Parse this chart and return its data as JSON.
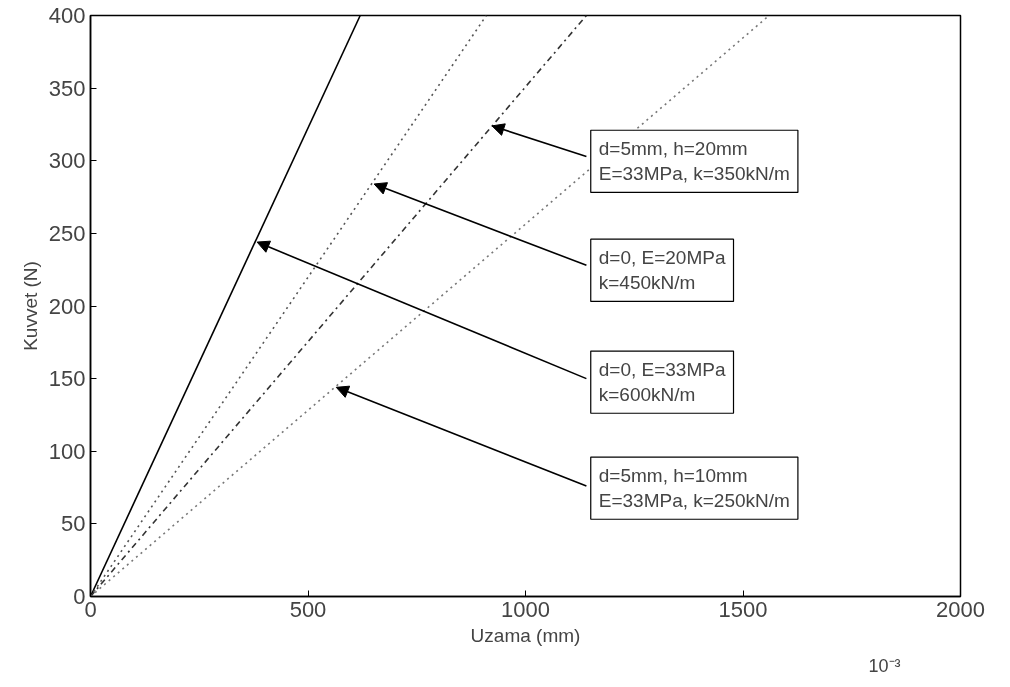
{
  "chart_data": {
    "type": "line",
    "xlabel": "Uzama (mm)",
    "ylabel": "Kuvvet (N)",
    "xlim": [
      0,
      2000
    ],
    "ylim": [
      0,
      400
    ],
    "xticks": [
      0,
      500,
      1000,
      1500,
      2000
    ],
    "yticks": [
      0,
      50,
      100,
      150,
      200,
      250,
      300,
      350,
      400
    ],
    "grid": false,
    "series": [
      {
        "color": "#000000",
        "line_style": "solid",
        "x": [
          0,
          620
        ],
        "values": [
          0,
          400
        ]
      },
      {
        "color": "#555555",
        "line_style": "dotted",
        "x": [
          0,
          910
        ],
        "values": [
          0,
          400
        ]
      },
      {
        "color": "#333333",
        "line_style": "dashdot",
        "x": [
          0,
          1140
        ],
        "values": [
          0,
          400
        ]
      },
      {
        "color": "#777777",
        "line_style": "dotted",
        "x": [
          0,
          1560
        ],
        "values": [
          0,
          400
        ]
      }
    ],
    "annotations": [
      {
        "text": "d=5mm, h=20mm\nE=33MPa, k=350kN/m",
        "x": 923,
        "y": 324
      },
      {
        "text": "d=0, E=20MPa\nk=450kN/m",
        "x": 652,
        "y": 284
      },
      {
        "text": "d=0, E=33MPa\nk=600kN/m",
        "x": 383,
        "y": 244
      },
      {
        "text": "d=5mm, h=10mm\nE=33MPa, k=250kN/m",
        "x": 565,
        "y": 144
      },
      "10⁻³"
    ]
  }
}
